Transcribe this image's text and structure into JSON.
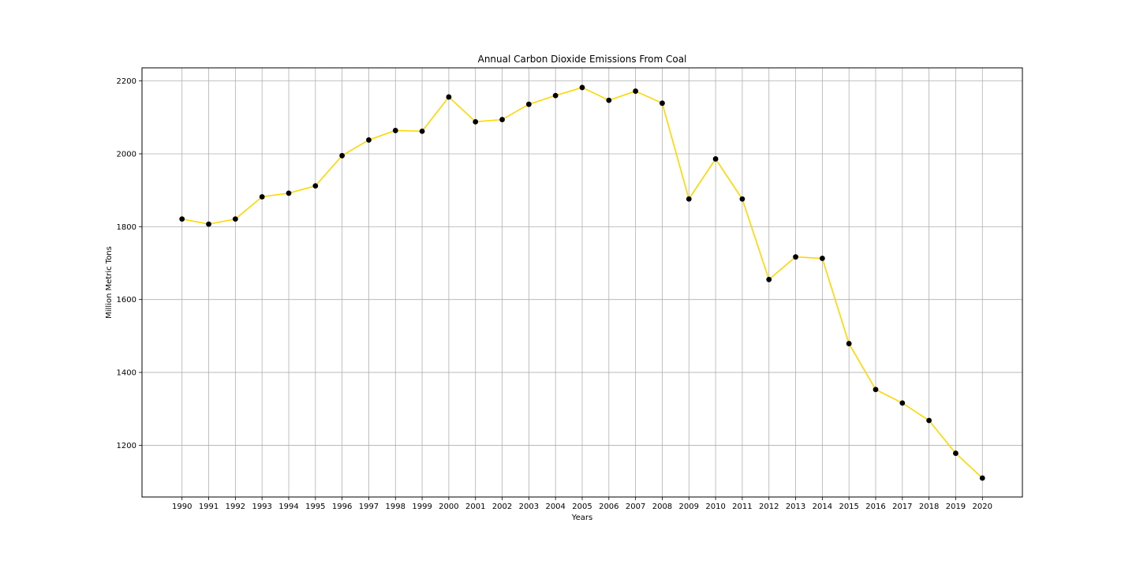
{
  "chart_data": {
    "type": "line",
    "title": "Annual Carbon Dioxide Emissions From Coal",
    "xlabel": "Years",
    "ylabel": "Million Metric Tons",
    "categories": [
      "1990",
      "1991",
      "1992",
      "1993",
      "1994",
      "1995",
      "1996",
      "1997",
      "1998",
      "1999",
      "2000",
      "2001",
      "2002",
      "2003",
      "2004",
      "2005",
      "2006",
      "2007",
      "2008",
      "2009",
      "2010",
      "2011",
      "2012",
      "2013",
      "2014",
      "2015",
      "2016",
      "2017",
      "2018",
      "2019",
      "2020"
    ],
    "series": [
      {
        "values": [
          1821,
          1807,
          1821,
          1882,
          1892,
          1912,
          1995,
          2038,
          2064,
          2062,
          2156,
          2088,
          2094,
          2136,
          2160,
          2182,
          2147,
          2172,
          2139,
          1876,
          1986,
          1876,
          1655,
          1717,
          1713,
          1479,
          1353,
          1316,
          1268,
          1178,
          1110
        ],
        "line_color": "#FFD700",
        "marker_color": "#000000"
      }
    ],
    "yticks": [
      1200,
      1400,
      1600,
      1800,
      2000,
      2200
    ],
    "ylim": [
      1058,
      2236
    ],
    "xlim": [
      -1.5,
      31.5
    ],
    "grid": true,
    "legend": "none"
  }
}
